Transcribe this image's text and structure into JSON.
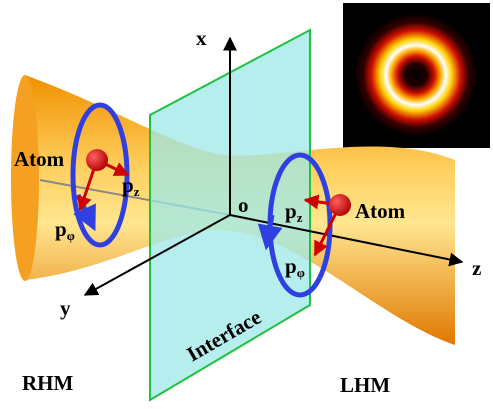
{
  "axes": {
    "x": "x",
    "y": "y",
    "z": "z",
    "origin": "o"
  },
  "atoms": [
    {
      "label": "Atom",
      "pz": {
        "base": "p",
        "sub": "z"
      },
      "pphi": {
        "base": "p",
        "sub": "φ"
      }
    },
    {
      "label": "Atom",
      "pz": {
        "base": "p",
        "sub": "z"
      },
      "pphi": {
        "base": "p",
        "sub": "φ"
      }
    }
  ],
  "interface": "Interface",
  "media": [
    "RHM",
    "LHM"
  ]
}
